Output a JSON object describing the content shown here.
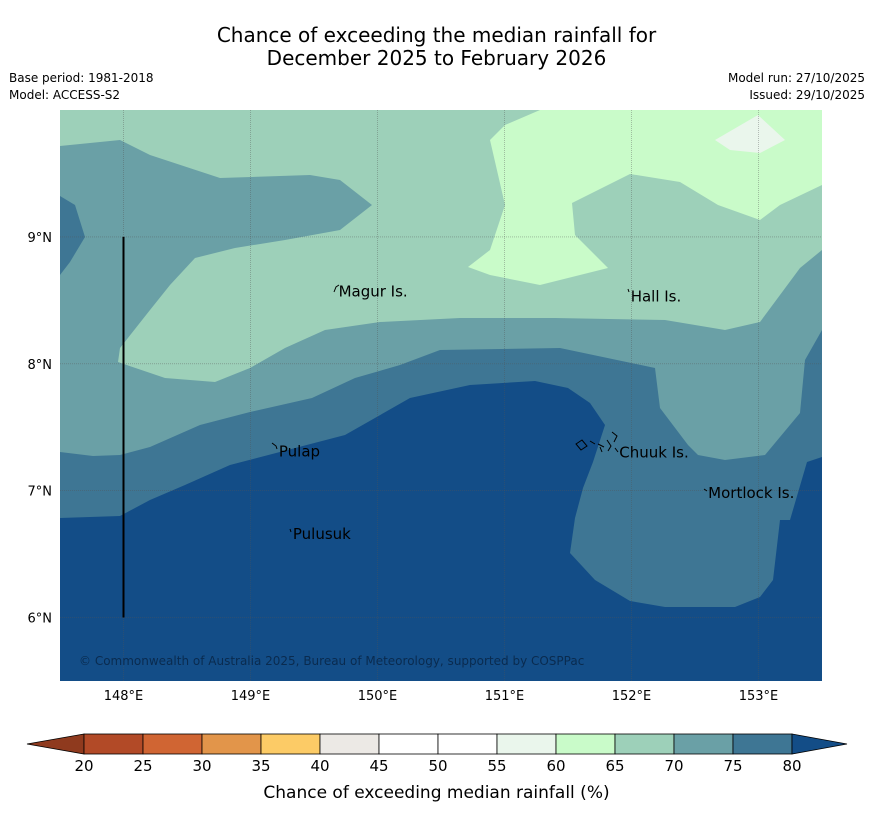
{
  "header": {
    "title_line1": "Chance of exceeding the median rainfall for",
    "title_line2": "December 2025 to February 2026",
    "base_period": "Base period: 1981-2018",
    "model": "Model: ACCESS-S2",
    "model_run": "Model run: 27/10/2025",
    "issued": "Issued: 29/10/2025"
  },
  "map": {
    "lon_ticks": [
      "148°E",
      "149°E",
      "150°E",
      "151°E",
      "152°E",
      "153°E"
    ],
    "lat_ticks": [
      "9°N",
      "8°N",
      "7°N",
      "6°N"
    ],
    "extent": {
      "lon_min": 147.5,
      "lon_max": 153.5,
      "lat_min": 5.5,
      "lat_max": 10.0
    },
    "places": [
      {
        "name": "Magur Is.",
        "lon": 149.67,
        "lat": 8.57
      },
      {
        "name": "Hall Is.",
        "lon": 151.97,
        "lat": 8.53
      },
      {
        "name": "Pulap",
        "lon": 149.2,
        "lat": 7.31
      },
      {
        "name": "Chuuk Is.",
        "lon": 151.88,
        "lat": 7.3
      },
      {
        "name": "Mortlock Is.",
        "lon": 152.58,
        "lat": 6.98
      },
      {
        "name": "Pulusuk",
        "lon": 149.31,
        "lat": 6.66
      }
    ],
    "meridian_line": {
      "lon": 148.0,
      "lat_from": 6.0,
      "lat_to": 9.0
    },
    "copyright": "© Commonwealth of Australia 2025, Bureau of Meteorology, supported by COSPPac"
  },
  "colorbar": {
    "ticks": [
      "20",
      "25",
      "30",
      "35",
      "40",
      "45",
      "50",
      "55",
      "60",
      "65",
      "70",
      "75",
      "80"
    ],
    "colors": [
      "#b24a27",
      "#d06533",
      "#e2954a",
      "#fccb66",
      "#ece9e5",
      "#ffffff",
      "#ffffff",
      "#eaf6ec",
      "#c9fbc9",
      "#9dd0b9",
      "#6aa0a6",
      "#3e7694"
    ],
    "low_extend_color": "#8f3a1e",
    "high_extend_color": "#134d87",
    "label": "Chance of exceeding median rainfall (%)"
  },
  "palette": {
    "c60": "#c9fbc9",
    "c55": "#eaf6ec",
    "c65": "#9dd0b9",
    "c70": "#6aa0a6",
    "c75": "#3e7694",
    "c80": "#134d87"
  }
}
